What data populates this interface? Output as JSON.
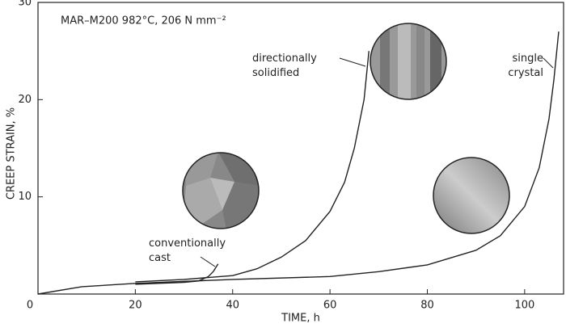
{
  "chart_data": {
    "type": "line",
    "title": "MAR–M200  982°C, 206 N mm⁻²",
    "x_label": "TIME, h",
    "y_label": "CREEP STRAIN, %",
    "xlim": [
      0,
      108
    ],
    "ylim": [
      0,
      30
    ],
    "xticks": [
      0,
      20,
      40,
      60,
      80,
      100
    ],
    "yticks": [
      10,
      20,
      30
    ],
    "color": "#222222",
    "series": [
      {
        "name": "conventionally cast",
        "color": "#222222",
        "x": [
          20,
          30,
          33,
          35,
          36,
          37
        ],
        "values": [
          1.0,
          1.2,
          1.35,
          1.8,
          2.3,
          3.1
        ]
      },
      {
        "name": "directionally solidified",
        "color": "#222222",
        "x": [
          20,
          30,
          40,
          45,
          50,
          55,
          60,
          63,
          65,
          67,
          68
        ],
        "values": [
          1.25,
          1.5,
          1.9,
          2.6,
          3.8,
          5.5,
          8.5,
          11.5,
          15,
          20,
          25
        ]
      },
      {
        "name": "single crystal",
        "color": "#222222",
        "x": [
          0,
          9,
          20,
          40,
          60,
          70,
          80,
          90,
          95,
          100,
          103,
          105,
          106,
          107
        ],
        "values": [
          0,
          0.75,
          1.1,
          1.5,
          1.8,
          2.3,
          3,
          4.5,
          6,
          9,
          13,
          18,
          22,
          27
        ]
      }
    ]
  }
}
